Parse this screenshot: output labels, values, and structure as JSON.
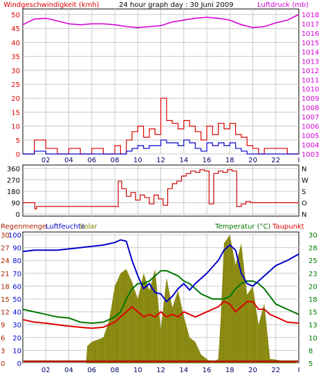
{
  "header": {
    "wind_title": "Windgeschwindigkeit (kmh)",
    "graph_title": "24 hour graph day : 30 Juni 2009",
    "pressure_title": "Luftdruck (mb)"
  },
  "bottom_header": {
    "rain_title": "Regenmenge",
    "humidity_title": "Luftfeuchte",
    "solar_title": "Solar",
    "temp_title": "Temperatur (°C)",
    "dew_title": "Taupunkt"
  },
  "x_ticks": [
    "02",
    "04",
    "06",
    "08",
    "10",
    "12",
    "14",
    "16",
    "18",
    "20",
    "22",
    "I"
  ],
  "colors": {
    "wind_gust": "#dd0000",
    "wind_avg": "#0000cc",
    "pressure": "#d400d4",
    "direction": "#cc0000",
    "humidity": "#0000cc",
    "temperature": "#007700",
    "dewpoint": "#dd0000",
    "solar": "#808000",
    "rain": "#aa2200",
    "grid": "#c8c8c8"
  },
  "chart_data": [
    {
      "type": "line",
      "title": "Windgeschwindigkeit (kmh) / Luftdruck (mb)",
      "y_left_ticks": [
        "0",
        "5",
        "10",
        "15",
        "20",
        "25",
        "30",
        "35",
        "40",
        "45",
        "50"
      ],
      "y_left_range": [
        0,
        50
      ],
      "y_right_ticks": [
        "1003",
        "1004",
        "1005",
        "1006",
        "1007",
        "1008",
        "1009",
        "1010",
        "1011",
        "1012",
        "1013",
        "1014",
        "1015",
        "1016",
        "1017",
        "1018"
      ],
      "y_right_range": [
        1003,
        1018
      ],
      "x_range_hours": [
        0,
        24
      ],
      "series": [
        {
          "name": "Luftdruck",
          "axis": "right",
          "x": [
            0,
            1,
            2,
            3,
            4,
            5,
            6,
            7,
            8,
            9,
            10,
            11,
            12,
            13,
            14,
            15,
            16,
            17,
            18,
            19,
            20,
            21,
            22,
            23,
            24
          ],
          "values": [
            1016.9,
            1017.5,
            1017.6,
            1017.3,
            1017.0,
            1016.9,
            1017.0,
            1017.0,
            1016.9,
            1016.7,
            1016.6,
            1016.7,
            1016.8,
            1017.2,
            1017.4,
            1017.6,
            1017.7,
            1017.6,
            1017.4,
            1016.9,
            1016.6,
            1016.7,
            1017.1,
            1017.4,
            1018.0
          ]
        },
        {
          "name": "Wind Boeen",
          "axis": "left",
          "x": [
            0,
            1,
            2,
            3,
            4,
            5,
            6,
            7,
            8,
            8.5,
            9,
            9.5,
            10,
            10.5,
            11,
            11.5,
            12,
            12.5,
            13,
            13.5,
            14,
            14.5,
            15,
            15.5,
            16,
            16.5,
            17,
            17.5,
            18,
            18.5,
            19,
            19.5,
            20,
            20.5,
            21,
            22,
            23,
            24
          ],
          "values": [
            0,
            5,
            2,
            0,
            2,
            0,
            2,
            0,
            3,
            0,
            5,
            8,
            10,
            6,
            9,
            7,
            20,
            12,
            11,
            9,
            12,
            10,
            8,
            5,
            10,
            7,
            11,
            9,
            11,
            7,
            6,
            3,
            2,
            0,
            2,
            2,
            0,
            0
          ]
        },
        {
          "name": "Wind Mittel",
          "axis": "left",
          "x": [
            0,
            1,
            2,
            3,
            4,
            5,
            6,
            7,
            8,
            8.5,
            9,
            9.5,
            10,
            10.5,
            11,
            11.5,
            12,
            12.5,
            13,
            13.5,
            14,
            14.5,
            15,
            15.5,
            16,
            16.5,
            17,
            17.5,
            18,
            18.5,
            19,
            19.5,
            20,
            20.5,
            21,
            22,
            23,
            24
          ],
          "values": [
            0,
            1,
            0,
            0,
            0,
            0,
            0,
            0,
            0,
            0,
            1,
            2,
            3,
            2,
            3,
            3,
            5,
            4,
            4,
            3,
            5,
            4,
            2,
            1,
            4,
            3,
            4,
            3,
            4,
            2,
            1,
            0,
            0,
            0,
            0,
            0,
            0,
            0
          ]
        }
      ]
    },
    {
      "type": "line",
      "title": "Windrichtung",
      "y_left_ticks": [
        "0",
        "90",
        "180",
        "270",
        "360"
      ],
      "y_left_range": [
        0,
        360
      ],
      "y_right_ticks": [
        "N",
        "W",
        "S",
        "O",
        "N"
      ],
      "x_range_hours": [
        0,
        24
      ],
      "series": [
        {
          "name": "Windrichtung",
          "x": [
            0,
            1,
            1.05,
            1.2,
            2,
            3,
            4,
            5,
            6,
            7,
            8,
            8.2,
            8.3,
            8.6,
            9,
            9.4,
            9.8,
            10.2,
            10.6,
            11,
            11.4,
            11.8,
            12.2,
            12.6,
            13,
            13.4,
            13.8,
            14.2,
            14.6,
            15,
            15.4,
            15.8,
            16.2,
            16.6,
            17,
            17.4,
            17.8,
            18.2,
            18.6,
            19,
            19.4,
            19.8,
            20,
            21,
            22,
            23,
            24
          ],
          "values": [
            90,
            90,
            40,
            60,
            60,
            60,
            60,
            60,
            60,
            60,
            60,
            60,
            260,
            200,
            140,
            170,
            110,
            150,
            130,
            80,
            150,
            120,
            70,
            200,
            240,
            260,
            300,
            320,
            340,
            330,
            350,
            340,
            80,
            320,
            340,
            330,
            350,
            340,
            60,
            80,
            100,
            90,
            90,
            90,
            90,
            90,
            90
          ]
        }
      ]
    },
    {
      "type": "area",
      "title": "Regenmenge / Luftfeuchte / Solar / Temperatur / Taupunkt",
      "y_rain_ticks": [
        "0",
        "3",
        "6",
        "9",
        "12",
        "15",
        "18",
        "21",
        "24",
        "27",
        "30"
      ],
      "y_humidity_ticks": [
        "0",
        "10",
        "20",
        "30",
        "40",
        "50",
        "60",
        "70",
        "80",
        "90",
        "100"
      ],
      "y_temp_ticks": [
        "5",
        "8",
        "10",
        "13",
        "15",
        "18",
        "20",
        "23",
        "25",
        "28",
        "30"
      ],
      "y_temp_range": [
        5,
        30
      ],
      "y_humidity_range": [
        0,
        100
      ],
      "x_range_hours": [
        0,
        24
      ],
      "series": [
        {
          "name": "Luftfeuchte",
          "axis": "humidity",
          "x": [
            0,
            1,
            2,
            3,
            4,
            5,
            6,
            7,
            8,
            8.5,
            9,
            9.5,
            10,
            10.5,
            11,
            11.5,
            12,
            12.5,
            13,
            13.5,
            14,
            14.5,
            15,
            15.5,
            16,
            16.5,
            17,
            17.5,
            18,
            18.5,
            19,
            19.5,
            20,
            20.5,
            21,
            21.5,
            22,
            23,
            24
          ],
          "values": [
            87,
            88,
            88,
            88,
            89,
            90,
            91,
            92,
            94,
            96,
            95,
            80,
            68,
            58,
            62,
            55,
            54,
            48,
            52,
            58,
            62,
            57,
            62,
            66,
            70,
            75,
            80,
            88,
            92,
            88,
            70,
            62,
            60,
            64,
            68,
            72,
            76,
            80,
            85
          ]
        },
        {
          "name": "Temperatur",
          "axis": "temp",
          "x": [
            0,
            1,
            2,
            3,
            4,
            5,
            6,
            7,
            8,
            8.5,
            9,
            9.5,
            10,
            10.5,
            11,
            11.5,
            12,
            12.5,
            13,
            13.5,
            14,
            14.5,
            15,
            15.5,
            16,
            16.5,
            17,
            17.5,
            18,
            18.5,
            19,
            19.5,
            20,
            20.5,
            21,
            21.5,
            22,
            23,
            24
          ],
          "values": [
            15.5,
            15,
            14.5,
            14,
            13.8,
            13,
            12.8,
            13,
            14,
            15,
            17.5,
            19.5,
            20.5,
            20.5,
            21,
            22,
            23,
            23,
            22.5,
            22,
            21,
            20.5,
            19.5,
            18.5,
            18,
            17.5,
            17.5,
            17.5,
            18,
            19.5,
            20.5,
            21,
            21,
            20.5,
            19.5,
            18,
            16.5,
            15.5,
            14.5
          ]
        },
        {
          "name": "Taupunkt",
          "axis": "temp",
          "x": [
            0,
            1,
            2,
            3,
            4,
            5,
            6,
            7,
            8,
            8.5,
            9,
            9.5,
            10,
            10.5,
            11,
            11.5,
            12,
            12.5,
            13,
            13.5,
            14,
            14.5,
            15,
            15.5,
            16,
            16.5,
            17,
            17.5,
            18,
            18.5,
            19,
            19.5,
            20,
            20.5,
            21,
            21.5,
            22,
            23,
            24
          ],
          "values": [
            13.5,
            13,
            12.8,
            12.5,
            12.2,
            12,
            11.8,
            12,
            13,
            14,
            15,
            16,
            15,
            14,
            14.5,
            14,
            15,
            14,
            14.5,
            14,
            15,
            14.5,
            14,
            14.5,
            15,
            15.5,
            16,
            17,
            16.5,
            15,
            16,
            17,
            17,
            15.5,
            15.5,
            14.5,
            14,
            13,
            12.8
          ]
        },
        {
          "name": "Solar",
          "axis": "rain",
          "x": [
            0,
            5.5,
            5.6,
            6,
            7,
            7.5,
            8,
            8.5,
            9,
            9.5,
            10,
            10.5,
            11,
            11.5,
            12,
            12.5,
            13,
            13.5,
            14,
            14.5,
            15,
            15.5,
            16,
            16.5,
            17,
            17.2,
            17.5,
            18,
            18.5,
            19,
            19.5,
            20,
            20.5,
            21,
            21.5,
            24
          ],
          "values": [
            0,
            0,
            4,
            5,
            6,
            10,
            18,
            21,
            22,
            19,
            15,
            21,
            17,
            22,
            8,
            20,
            13,
            17,
            11,
            6,
            5,
            2,
            1,
            0,
            1,
            10,
            28,
            30,
            23,
            28,
            16,
            18,
            9,
            14,
            1,
            0
          ]
        }
      ]
    }
  ]
}
